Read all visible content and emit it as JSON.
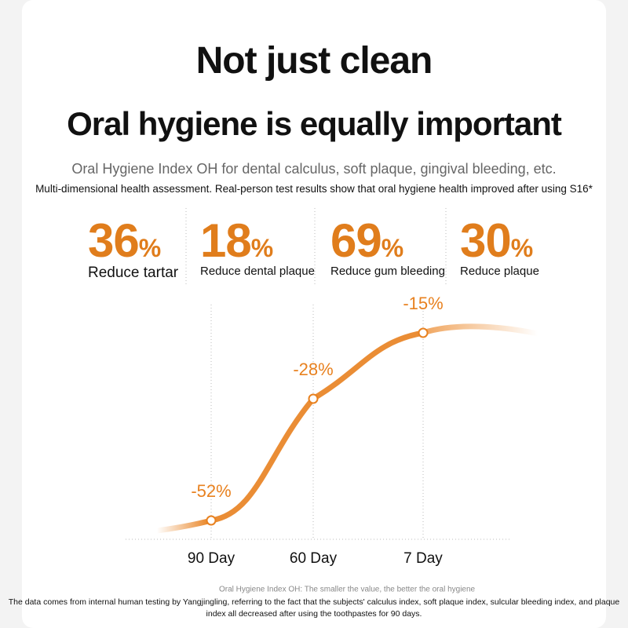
{
  "header": {
    "title": "Not just clean",
    "subtitle": "Oral hygiene is equally important",
    "description": "Oral Hygiene Index OH for dental calculus, soft plaque, gingival bleeding, etc.",
    "note": "Multi-dimensional health assessment. Real-person test results show that oral hygiene health improved after using S16*"
  },
  "stats": [
    {
      "number": "36",
      "unit": "%",
      "label": "Reduce tartar"
    },
    {
      "number": "18",
      "unit": "%",
      "label": "Reduce dental plaque"
    },
    {
      "number": "69",
      "unit": "%",
      "label": "Reduce gum bleeding"
    },
    {
      "number": "30",
      "unit": "%",
      "label": "Reduce plaque"
    }
  ],
  "chart_data": {
    "type": "line",
    "categories": [
      "90 Day",
      "60 Day",
      "7 Day"
    ],
    "series": [
      {
        "name": "Oral Hygiene Index OH: The smaller the value, the better the oral hygiene",
        "color": "#e8811f",
        "values": [
          -52,
          -28,
          -15
        ],
        "value_labels": [
          "-52%",
          "-28%",
          "-15%"
        ]
      }
    ]
  },
  "footer": "The data comes from internal human testing by Yangjingling, referring to the fact that the subjects' calculus index, soft plaque index, sulcular bleeding index, and plaque index all decreased after using the toothpastes for 90 days."
}
